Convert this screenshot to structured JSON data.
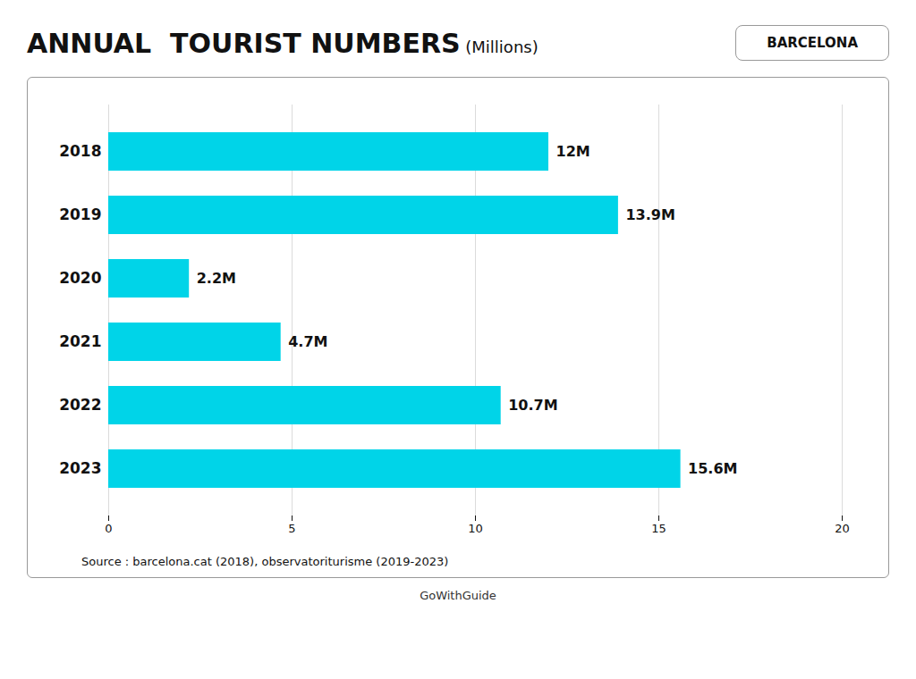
{
  "chart_data": {
    "type": "bar",
    "orientation": "horizontal",
    "title": "ANNUAL  TOURIST NUMBERS",
    "subtitle": " (Millions)",
    "annotations": [
      "BARCELONA",
      "Source : barcelona.cat (2018), observatoriturisme (2019-2023)",
      "GoWithGuide"
    ],
    "categories": [
      "2018",
      "2019",
      "2020",
      "2021",
      "2022",
      "2023"
    ],
    "values": [
      12,
      13.9,
      2.2,
      4.7,
      10.7,
      15.6
    ],
    "value_labels": [
      "12M",
      "13.9M",
      "2.2M",
      "4.7M",
      "10.7M",
      "15.6M"
    ],
    "data_labels": true,
    "color": "#00d4e8",
    "xlim": [
      0,
      20
    ],
    "xticks": [
      0,
      5,
      10,
      15,
      20
    ],
    "grid": true
  }
}
